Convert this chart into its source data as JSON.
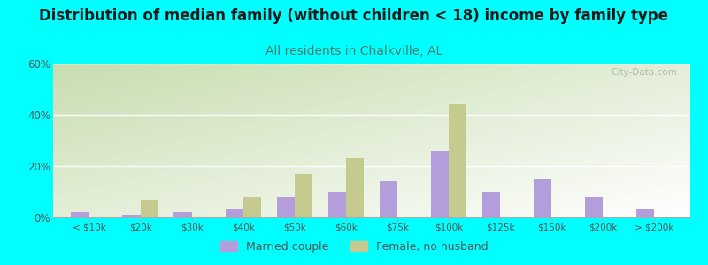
{
  "title": "Distribution of median family (without children < 18) income by family type",
  "subtitle": "All residents in Chalkville, AL",
  "background_color": "#00FFFF",
  "categories": [
    "< $10k",
    "$20k",
    "$30k",
    "$40k",
    "$50k",
    "$60k",
    "$75k",
    "$100k",
    "$125k",
    "$150k",
    "$200k",
    "> $200k"
  ],
  "married_couple": [
    2,
    1,
    2,
    3,
    8,
    10,
    14,
    26,
    10,
    15,
    8,
    3
  ],
  "female_no_husband": [
    0,
    7,
    0,
    8,
    17,
    23,
    0,
    44,
    0,
    0,
    0,
    0
  ],
  "married_color": "#b39ddb",
  "female_color": "#c5ca8e",
  "ylim": [
    0,
    60
  ],
  "yticks": [
    0,
    20,
    40,
    60
  ],
  "ytick_labels": [
    "0%",
    "20%",
    "40%",
    "60%"
  ],
  "title_fontsize": 12,
  "subtitle_fontsize": 10,
  "subtitle_color": "#4a7c6f",
  "watermark": "City-Data.com",
  "grid_color": "#dddddd",
  "tick_label_color": "#555555"
}
